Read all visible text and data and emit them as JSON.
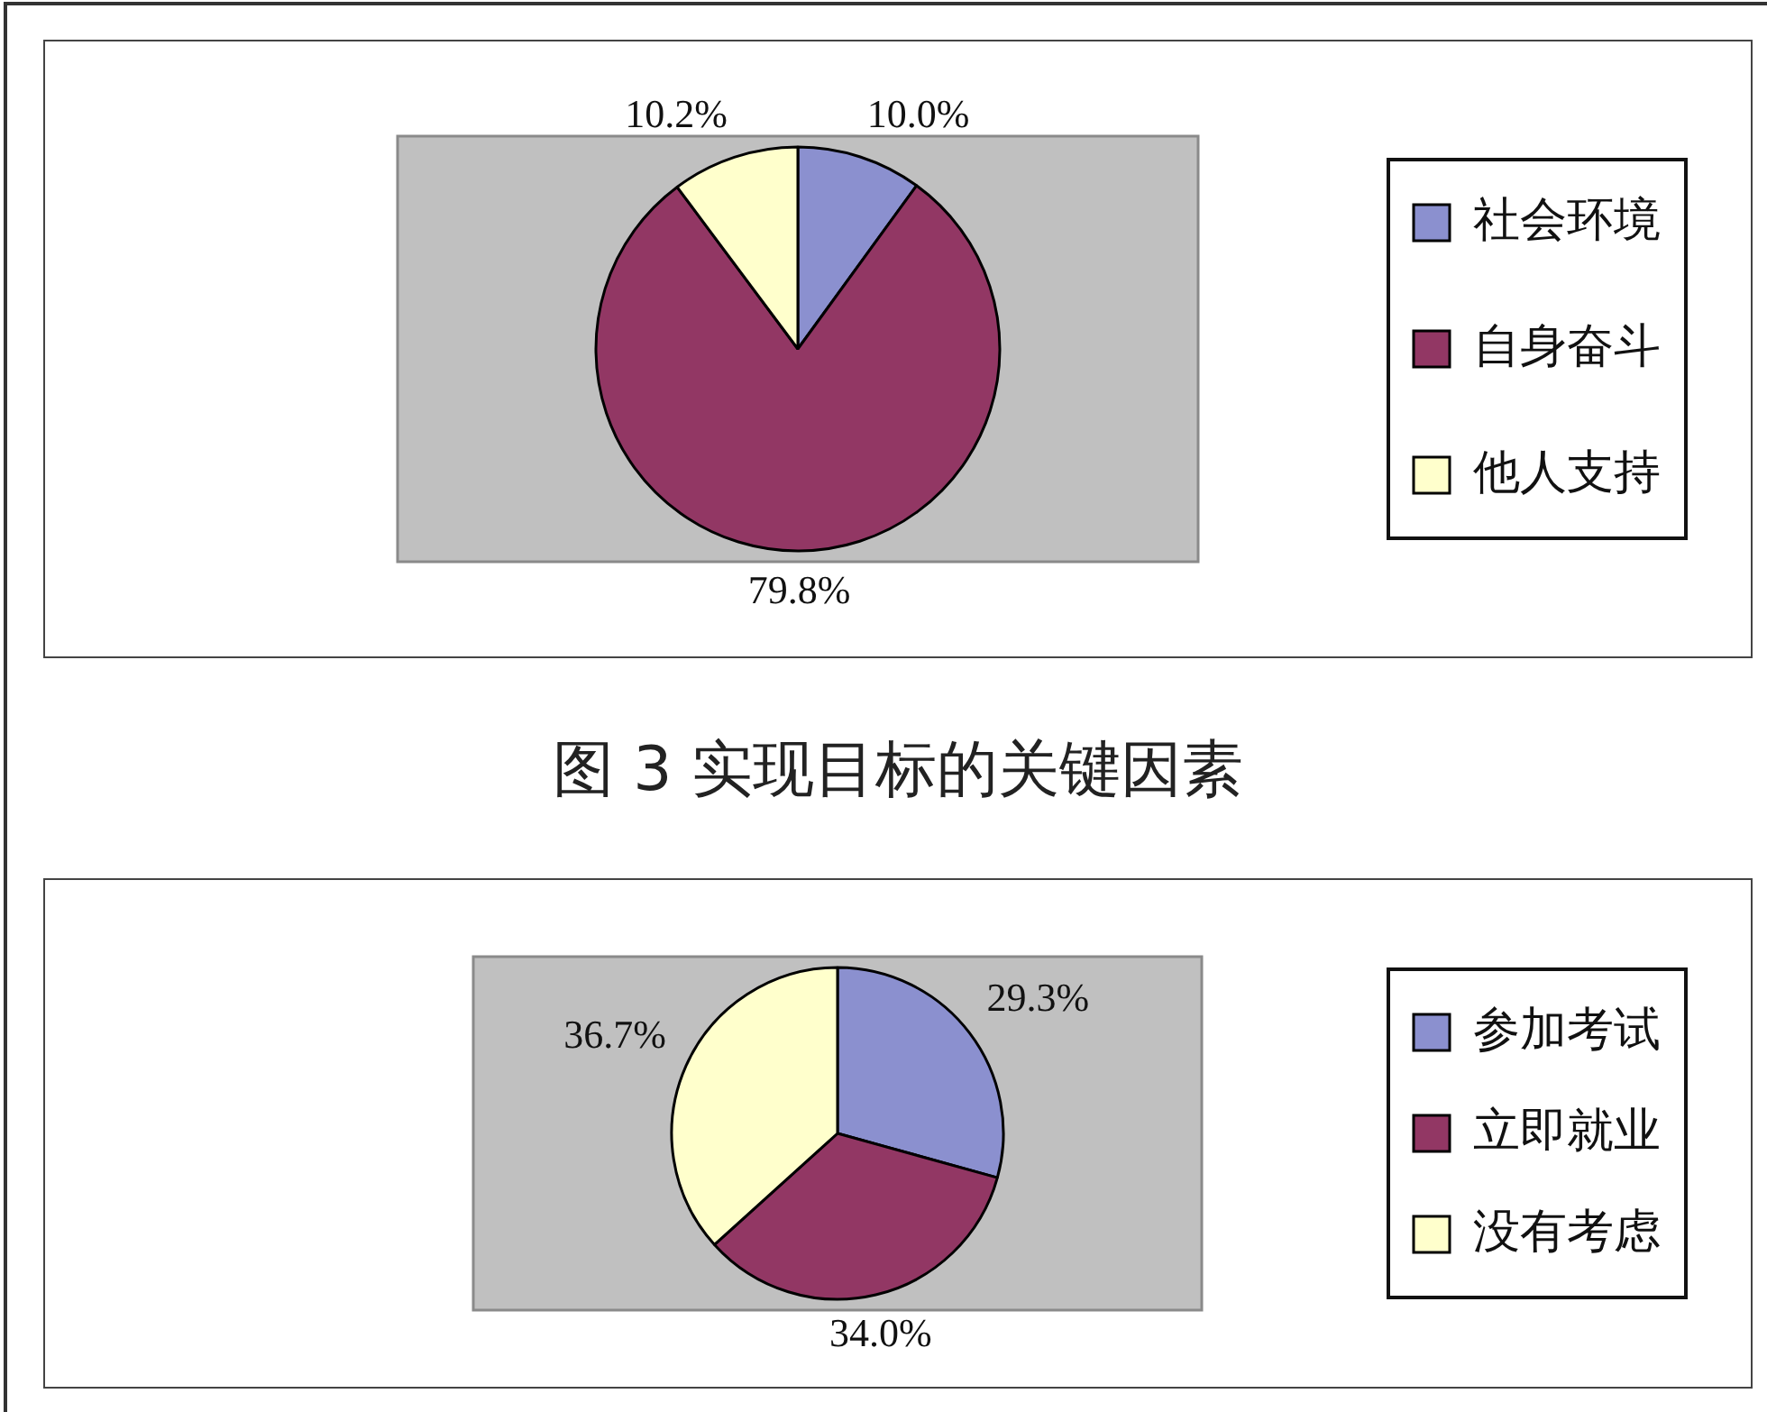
{
  "chart_data": [
    {
      "type": "pie",
      "title": "图 3 实现目标的关键因素",
      "categories": [
        "社会环境",
        "自身奋斗",
        "他人支持"
      ],
      "values": [
        10.0,
        79.8,
        10.2
      ],
      "colors": [
        "#8b90cf",
        "#923764",
        "#ffffcc"
      ],
      "value_labels": [
        "10.0%",
        "79.8%",
        "10.2%"
      ],
      "legend": "right"
    },
    {
      "type": "pie",
      "categories": [
        "参加考试",
        "立即就业",
        "没有考虑"
      ],
      "values": [
        29.3,
        34.0,
        36.7
      ],
      "colors": [
        "#8b90cf",
        "#923764",
        "#ffffcc"
      ],
      "value_labels": [
        "29.3%",
        "34.0%",
        "36.7%"
      ],
      "legend": "right"
    }
  ]
}
